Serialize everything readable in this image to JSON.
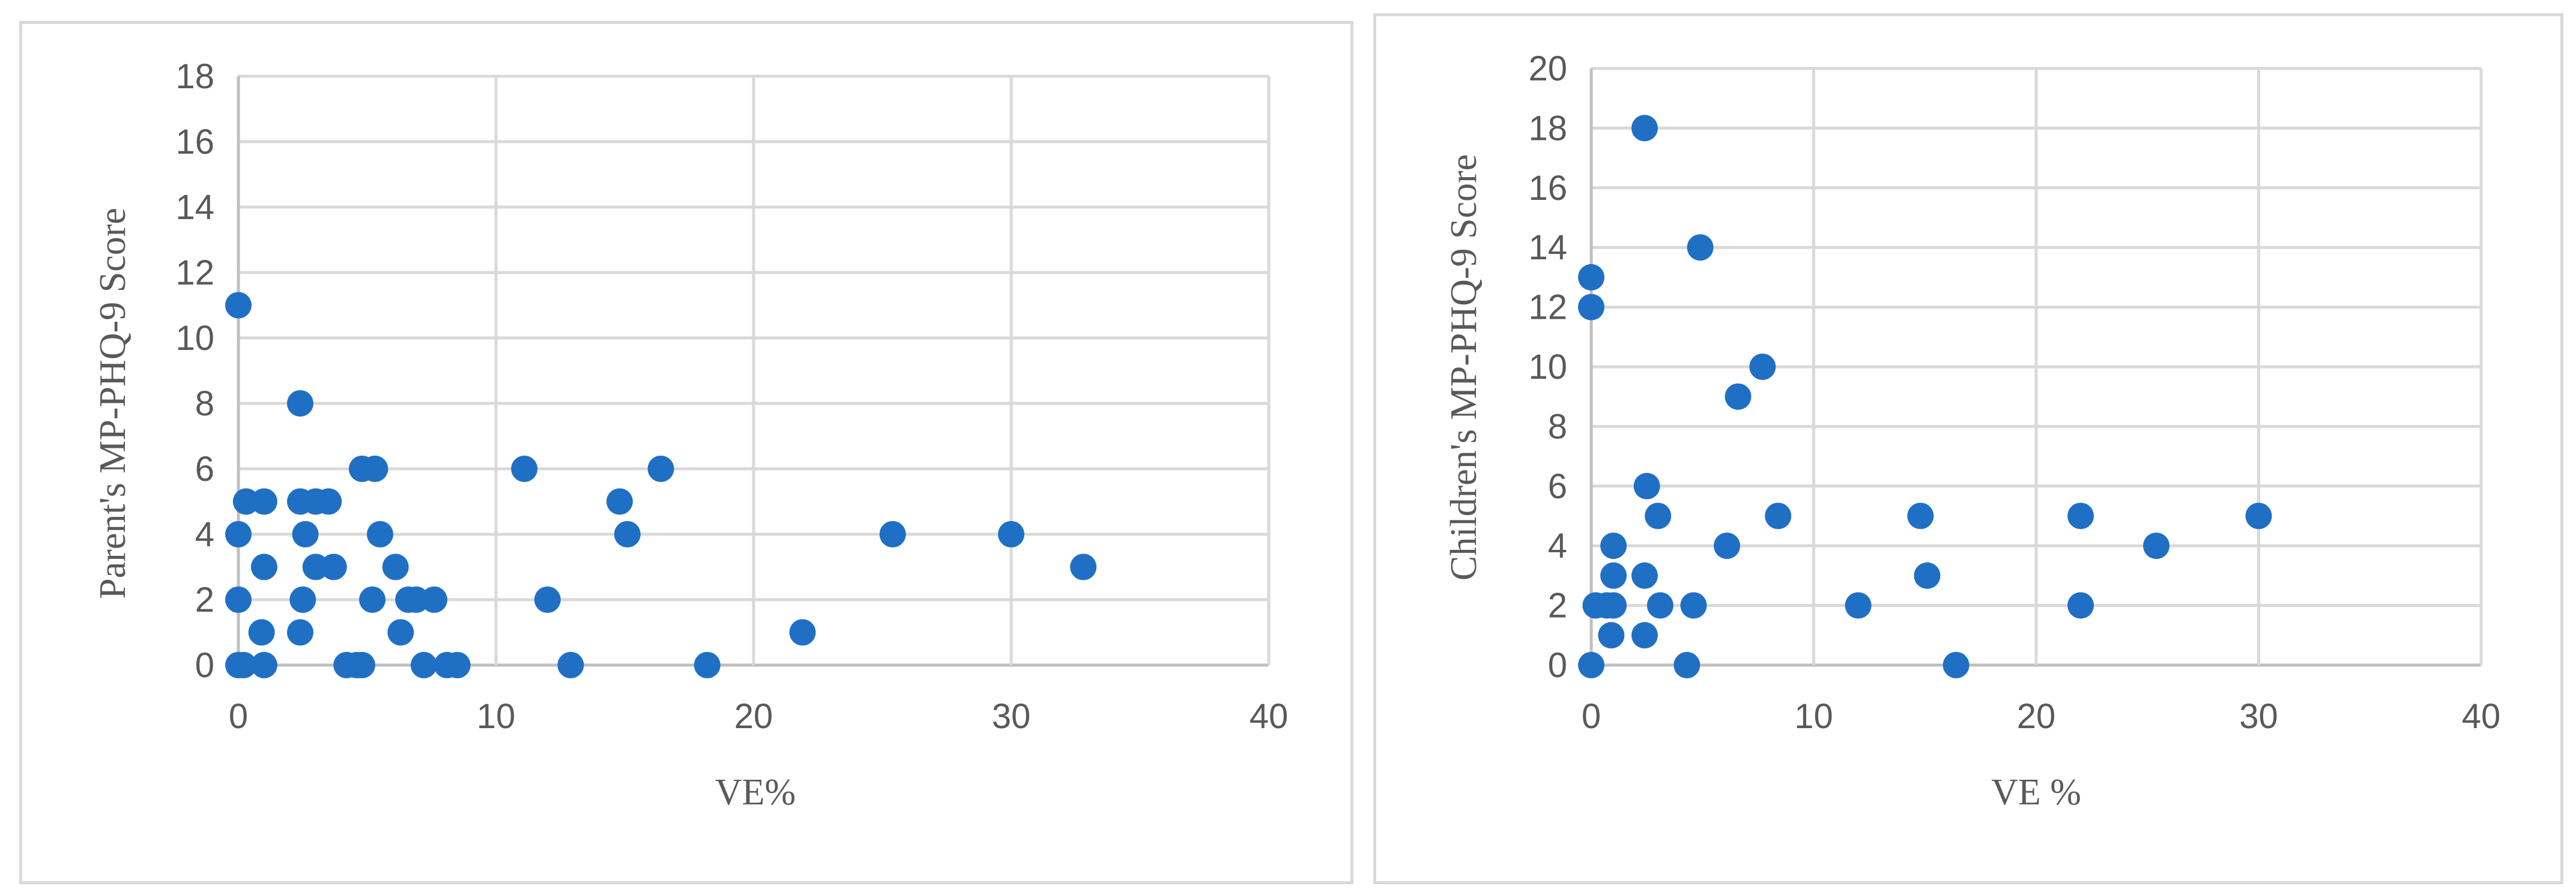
{
  "chart_data": [
    {
      "type": "scatter",
      "title": "",
      "xlabel": "VE%",
      "ylabel": "Parent's MP-PHQ-9 Score",
      "xlim": [
        0,
        40
      ],
      "ylim": [
        0,
        18
      ],
      "xticks": [
        0,
        10,
        20,
        30,
        40
      ],
      "yticks": [
        0,
        2,
        4,
        6,
        8,
        10,
        12,
        14,
        16,
        18
      ],
      "grid": true,
      "marker_color": "#1F6FC5",
      "points": [
        [
          0,
          11
        ],
        [
          0,
          4
        ],
        [
          0,
          2
        ],
        [
          0,
          0
        ],
        [
          0.2,
          0
        ],
        [
          0.3,
          5
        ],
        [
          1.0,
          5
        ],
        [
          1.0,
          3
        ],
        [
          0.9,
          1
        ],
        [
          1.0,
          0
        ],
        [
          2.4,
          8
        ],
        [
          2.4,
          5
        ],
        [
          2.6,
          4
        ],
        [
          2.5,
          2
        ],
        [
          2.4,
          1
        ],
        [
          3.0,
          5
        ],
        [
          3.5,
          5
        ],
        [
          3.0,
          3
        ],
        [
          3.7,
          3
        ],
        [
          4.2,
          0
        ],
        [
          4.6,
          0
        ],
        [
          4.8,
          0
        ],
        [
          4.8,
          6
        ],
        [
          5.3,
          6
        ],
        [
          5.5,
          4
        ],
        [
          5.2,
          2
        ],
        [
          6.1,
          3
        ],
        [
          6.3,
          1
        ],
        [
          6.6,
          2
        ],
        [
          6.9,
          2
        ],
        [
          7.6,
          2
        ],
        [
          7.2,
          0
        ],
        [
          8.1,
          0
        ],
        [
          8.5,
          0
        ],
        [
          11.1,
          6
        ],
        [
          12.0,
          2
        ],
        [
          12.9,
          0
        ],
        [
          14.8,
          5
        ],
        [
          15.1,
          4
        ],
        [
          16.4,
          6
        ],
        [
          18.2,
          0
        ],
        [
          21.9,
          1
        ],
        [
          25.4,
          4
        ],
        [
          30.0,
          4
        ],
        [
          32.8,
          3
        ]
      ]
    },
    {
      "type": "scatter",
      "title": "",
      "xlabel": "VE %",
      "ylabel": "Children's MP-PHQ-9 Score",
      "xlim": [
        0,
        40
      ],
      "ylim": [
        0,
        20
      ],
      "xticks": [
        0,
        10,
        20,
        30,
        40
      ],
      "yticks": [
        0,
        2,
        4,
        6,
        8,
        10,
        12,
        14,
        16,
        18,
        20
      ],
      "grid": true,
      "marker_color": "#1F6FC5",
      "points": [
        [
          0,
          13
        ],
        [
          0,
          12
        ],
        [
          0,
          0
        ],
        [
          0.2,
          2
        ],
        [
          0.7,
          2
        ],
        [
          0.9,
          1
        ],
        [
          1.0,
          4
        ],
        [
          1.0,
          3
        ],
        [
          1.0,
          2
        ],
        [
          2.4,
          18
        ],
        [
          2.5,
          6
        ],
        [
          2.4,
          3
        ],
        [
          2.4,
          1
        ],
        [
          3.0,
          5
        ],
        [
          3.1,
          2
        ],
        [
          4.3,
          0
        ],
        [
          4.6,
          2
        ],
        [
          4.9,
          14
        ],
        [
          6.1,
          4
        ],
        [
          6.6,
          9
        ],
        [
          7.7,
          10
        ],
        [
          8.4,
          5
        ],
        [
          12.0,
          2
        ],
        [
          14.8,
          5
        ],
        [
          15.1,
          3
        ],
        [
          16.4,
          0
        ],
        [
          22.0,
          5
        ],
        [
          22.0,
          2
        ],
        [
          25.4,
          4
        ],
        [
          30.0,
          5
        ]
      ]
    }
  ]
}
